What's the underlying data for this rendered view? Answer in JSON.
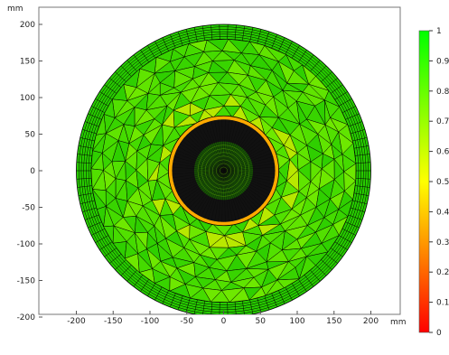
{
  "plot": {
    "unit_y": "mm",
    "unit_x": "mm",
    "x_ticks": [
      "-200",
      "-150",
      "-100",
      "-50",
      "0",
      "50",
      "100",
      "150",
      "200"
    ],
    "y_ticks": [
      "200",
      "150",
      "100",
      "50",
      "0",
      "-50",
      "-100",
      "-150",
      "-200"
    ],
    "xlim": [
      -240,
      240
    ],
    "ylim": [
      -210,
      215
    ]
  },
  "mesh": {
    "outer_radius_mm": 200,
    "boundary_layer_inner_radius_mm": 180,
    "inner_dense_radius_mm": 70,
    "fill_color_outer": "#27cc00",
    "fill_color_inner": "#55e300",
    "dense_core_color": "#111111",
    "ring_highlight_color": "#ffaa00",
    "mesh_line_color": "#000000"
  },
  "colorbar": {
    "tick_labels": [
      "1",
      "0.9",
      "0.8",
      "0.7",
      "0.6",
      "0.5",
      "0.4",
      "0.3",
      "0.2",
      "0.1",
      "0"
    ],
    "stops": [
      "#00ff00",
      "#ffff00",
      "#ff0000"
    ],
    "range": [
      0,
      1
    ]
  }
}
